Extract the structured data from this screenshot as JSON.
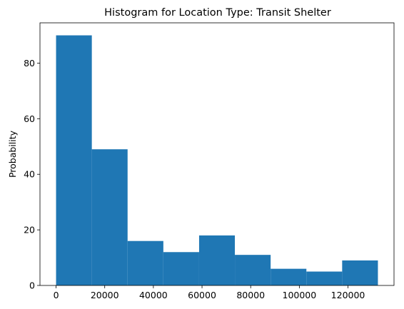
{
  "chart_data": {
    "type": "bar",
    "title": "Histogram for Location Type: Transit Shelter",
    "xlabel": "",
    "ylabel": "Probability",
    "bin_edges": [
      0,
      14700,
      29400,
      44100,
      58800,
      73500,
      88200,
      102900,
      117600,
      132300
    ],
    "values": [
      90,
      49,
      16,
      12,
      18,
      11,
      6,
      5,
      9
    ],
    "xlim": [
      -6615,
      138915
    ],
    "ylim": [
      0,
      94.5
    ],
    "xticks": [
      0,
      20000,
      40000,
      60000,
      80000,
      100000,
      120000
    ],
    "xtick_labels": [
      "0",
      "20000",
      "40000",
      "60000",
      "80000",
      "100000",
      "120000"
    ],
    "yticks": [
      0,
      20,
      40,
      60,
      80
    ],
    "ytick_labels": [
      "0",
      "20",
      "40",
      "60",
      "80"
    ],
    "bar_color": "#1f77b4",
    "grid": false,
    "legend": "none"
  }
}
